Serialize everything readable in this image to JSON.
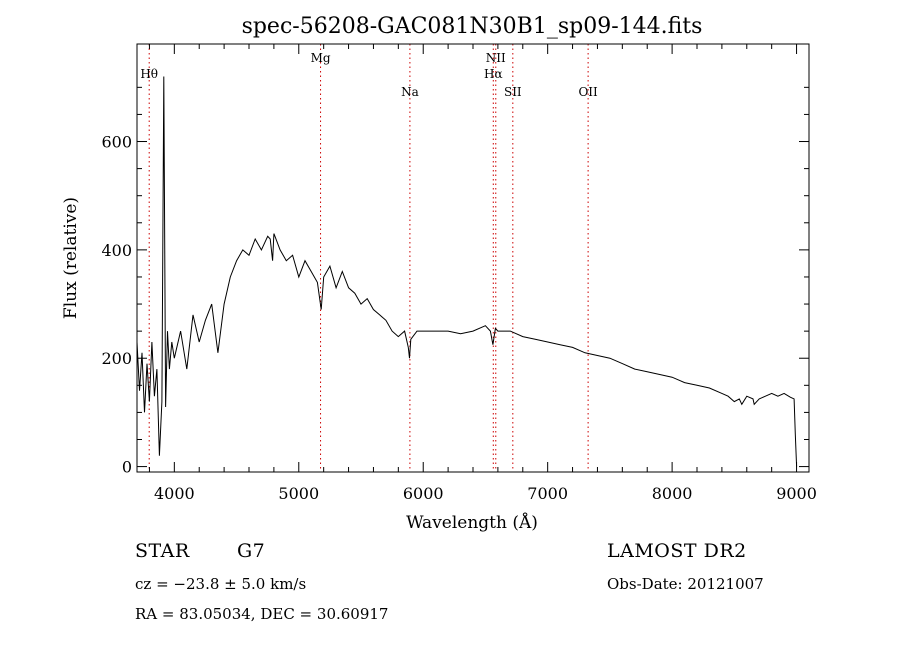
{
  "chart_data": {
    "type": "line",
    "title": "spec-56208-GAC081N30B1_sp09-144.fits",
    "xlabel": "Wavelength (Å)",
    "ylabel": "Flux (relative)",
    "xlim": [
      3700,
      9100
    ],
    "ylim": [
      -10,
      780
    ],
    "x_ticks": [
      4000,
      5000,
      6000,
      7000,
      8000,
      9000
    ],
    "y_ticks": [
      0,
      200,
      400,
      600
    ],
    "grid": false,
    "line_color": "#000000",
    "marker_color": "#cc0000",
    "series": [
      {
        "x": [
          3700,
          3720,
          3740,
          3760,
          3780,
          3800,
          3820,
          3840,
          3860,
          3880,
          3900,
          3915,
          3930,
          3945,
          3960,
          3980,
          4000,
          4050,
          4100,
          4150,
          4200,
          4250,
          4300,
          4350,
          4400,
          4450,
          4500,
          4550,
          4600,
          4650,
          4700,
          4750,
          4770,
          4790,
          4800,
          4850,
          4900,
          4950,
          5000,
          5050,
          5100,
          5150,
          5180,
          5200,
          5250,
          5300,
          5350,
          5400,
          5450,
          5500,
          5550,
          5600,
          5650,
          5700,
          5750,
          5800,
          5850,
          5880,
          5890,
          5900,
          5950,
          6000,
          6100,
          6200,
          6300,
          6400,
          6500,
          6540,
          6560,
          6580,
          6600,
          6700,
          6800,
          6900,
          7000,
          7100,
          7200,
          7300,
          7400,
          7500,
          7600,
          7700,
          7800,
          7900,
          8000,
          8100,
          8200,
          8300,
          8400,
          8450,
          8500,
          8540,
          8560,
          8600,
          8650,
          8660,
          8700,
          8750,
          8800,
          8850,
          8900,
          8950,
          8980,
          8990,
          9000
        ],
        "y": [
          230,
          140,
          210,
          100,
          190,
          120,
          230,
          130,
          180,
          20,
          120,
          720,
          110,
          250,
          180,
          230,
          200,
          250,
          180,
          280,
          230,
          270,
          300,
          210,
          300,
          350,
          380,
          400,
          390,
          420,
          400,
          425,
          420,
          380,
          430,
          400,
          380,
          390,
          350,
          380,
          360,
          340,
          290,
          350,
          370,
          330,
          360,
          330,
          320,
          300,
          310,
          290,
          280,
          270,
          250,
          240,
          250,
          220,
          200,
          235,
          250,
          250,
          250,
          250,
          245,
          250,
          260,
          250,
          225,
          255,
          250,
          250,
          240,
          235,
          230,
          225,
          220,
          210,
          205,
          200,
          190,
          180,
          175,
          170,
          165,
          155,
          150,
          145,
          135,
          130,
          120,
          125,
          115,
          130,
          125,
          115,
          125,
          130,
          135,
          130,
          135,
          128,
          125,
          60,
          0
        ]
      }
    ],
    "lines": [
      {
        "label": "Hθ",
        "x": 3798
      },
      {
        "label": "Mg",
        "x": 5175
      },
      {
        "label": "Na",
        "x": 5893
      },
      {
        "label": "NII",
        "x": 6583
      },
      {
        "label": "Hα",
        "x": 6563
      },
      {
        "label": "SII",
        "x": 6720
      },
      {
        "label": "OII",
        "x": 7325
      }
    ]
  },
  "footer": {
    "object_type": "STAR",
    "subclass": "G7",
    "survey": "LAMOST DR2",
    "cz": "cz = −23.8 ± 5.0 km/s",
    "obs_date": "Obs-Date: 20121007",
    "coords": "RA =  83.05034, DEC =  30.60917"
  }
}
